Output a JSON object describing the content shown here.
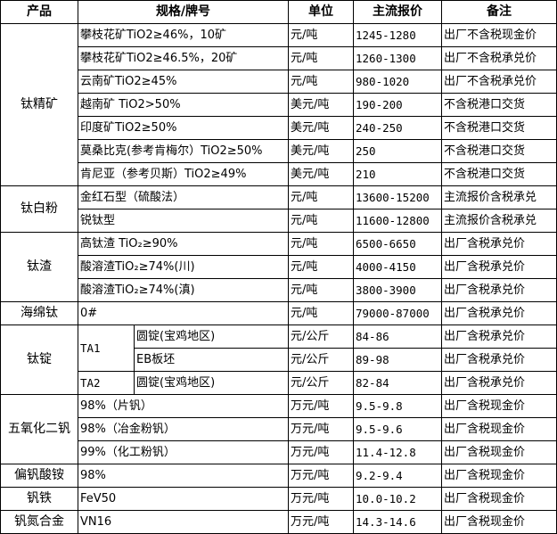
{
  "headers": {
    "product": "产品",
    "spec": "规格/牌号",
    "unit": "单位",
    "price": "主流报价",
    "note": "备注"
  },
  "groups": [
    {
      "product": "钛精矿",
      "rows": [
        {
          "spec": "攀枝花矿TiO2≥46%，10矿",
          "unit": "元/吨",
          "price": "1245-1280",
          "note": "出厂不含税现金价"
        },
        {
          "spec": "攀枝花矿TiO2≥46.5%，20矿",
          "unit": "元/吨",
          "price": "1260-1300",
          "note": "出厂不含税承兑价"
        },
        {
          "spec": "云南矿TiO2≥45%",
          "unit": "元/吨",
          "price": "980-1020",
          "note": "出厂不含税承兑价"
        },
        {
          "spec": "越南矿 TiO2>50%",
          "unit": "美元/吨",
          "price": "190-200",
          "note": "不含税港口交货"
        },
        {
          "spec": "印度矿TiO2≥50%",
          "unit": "美元/吨",
          "price": "240-250",
          "note": "不含税港口交货"
        },
        {
          "spec": "莫桑比克(参考肯梅尔）TiO2≥50%",
          "unit": "美元/吨",
          "price": "250",
          "note": "不含税港口交货"
        },
        {
          "spec": "肯尼亚（参考贝斯）TiO2≥49%",
          "unit": "美元/吨",
          "price": "210",
          "note": "不含税港口交货"
        }
      ]
    },
    {
      "product": "钛白粉",
      "rows": [
        {
          "spec": "金红石型（硫酸法）",
          "unit": "元/吨",
          "price": "13600-15200",
          "note": "主流报价含税承兑"
        },
        {
          "spec": "锐钛型",
          "unit": "元/吨",
          "price": "11600-12800",
          "note": "主流报价含税承兑"
        }
      ]
    },
    {
      "product": "钛渣",
      "rows": [
        {
          "spec": "高钛渣 TiO₂≥90%",
          "unit": "元/吨",
          "price": "6500-6650",
          "note": "出厂含税承兑价"
        },
        {
          "spec": "酸溶渣TiO₂≥74%(川)",
          "unit": "元/吨",
          "price": "4000-4150",
          "note": "出厂含税承兑价"
        },
        {
          "spec": "酸溶渣TiO₂≥74%(滇)",
          "unit": "元/吨",
          "price": "3800-3900",
          "note": "出厂含税承兑价"
        }
      ]
    },
    {
      "product": "海绵钛",
      "rows": [
        {
          "spec": "0#",
          "unit": "元/吨",
          "price": "79000-87000",
          "note": "出厂含税承兑价"
        }
      ]
    },
    {
      "product": "钛锭",
      "grades": [
        "TA1",
        "TA2"
      ],
      "rows": [
        {
          "spec": "圆锭(宝鸡地区)",
          "unit": "元/公斤",
          "price": "84-86",
          "note": "出厂含税承兑价"
        },
        {
          "spec": "EB板坯",
          "unit": "元/公斤",
          "price": "89-98",
          "note": "出厂含税承兑价"
        },
        {
          "spec": "圆锭(宝鸡地区)",
          "unit": "元/公斤",
          "price": "82-84",
          "note": "出厂含税承兑价"
        }
      ]
    },
    {
      "product": "五氧化二钒",
      "rows": [
        {
          "spec": "98%（片钒）",
          "unit": "万元/吨",
          "price": "9.5-9.8",
          "note": "出厂含税现金价"
        },
        {
          "spec": "98%（冶金粉钒）",
          "unit": "万元/吨",
          "price": "9.5-9.6",
          "note": "出厂含税现金价"
        },
        {
          "spec": "99%（化工粉钒）",
          "unit": "万元/吨",
          "price": "11.4-12.8",
          "note": "出厂含税现金价"
        }
      ]
    },
    {
      "product": "偏钒酸铵",
      "rows": [
        {
          "spec": "98%",
          "unit": "万元/吨",
          "price": "9.2-9.4",
          "note": "出厂含税现金价"
        }
      ]
    },
    {
      "product": "钒铁",
      "rows": [
        {
          "spec": "FeV50",
          "unit": "万元/吨",
          "price": "10.0-10.2",
          "note": "出厂含税现金价"
        }
      ]
    },
    {
      "product": "钒氮合金",
      "rows": [
        {
          "spec": "VN16",
          "unit": "万元/吨",
          "price": "14.3-14.6",
          "note": "出厂含税现金价"
        }
      ]
    }
  ]
}
